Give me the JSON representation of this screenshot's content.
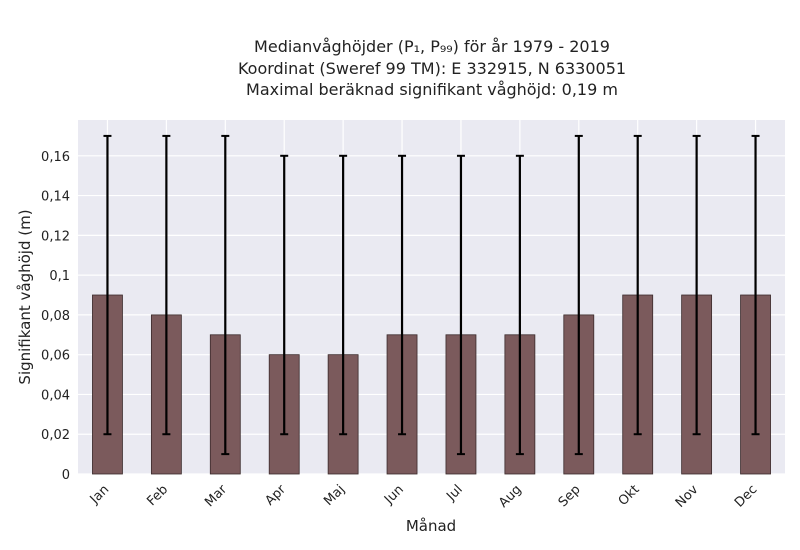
{
  "chart_data": {
    "type": "bar",
    "title_lines": [
      "Medianvåghöjder (P₁, P₉₉) för år 1979 - 2019",
      "Koordinat (Sweref 99 TM): E 332915, N 6330051",
      "Maximal beräknad signifikant våghöjd: 0,19 m"
    ],
    "xlabel": "Månad",
    "ylabel": "Signifikant våghöjd (m)",
    "categories": [
      "Jan",
      "Feb",
      "Mar",
      "Apr",
      "Maj",
      "Jun",
      "Jul",
      "Aug",
      "Sep",
      "Okt",
      "Nov",
      "Dec"
    ],
    "values": [
      0.09,
      0.08,
      0.07,
      0.06,
      0.06,
      0.07,
      0.07,
      0.07,
      0.08,
      0.09,
      0.09,
      0.09
    ],
    "p1": [
      0.02,
      0.02,
      0.01,
      0.02,
      0.02,
      0.02,
      0.01,
      0.01,
      0.01,
      0.02,
      0.02,
      0.02
    ],
    "p99": [
      0.17,
      0.17,
      0.17,
      0.16,
      0.16,
      0.16,
      0.16,
      0.16,
      0.17,
      0.17,
      0.17,
      0.17
    ],
    "ylim": [
      0,
      0.178
    ],
    "yticks": [
      0,
      0.02,
      0.04,
      0.06,
      0.08,
      0.1,
      0.12,
      0.14,
      0.16
    ],
    "ytick_labels": [
      "0",
      "0,02",
      "0,04",
      "0,06",
      "0,08",
      "0,1",
      "0,12",
      "0,14",
      "0,16"
    ],
    "grid": true,
    "colors": {
      "bar": "#7b5a5c",
      "bar_edge": "#3a2a2b",
      "errorbar": "#000000",
      "plot_bg": "#eaeaf2",
      "grid": "#ffffff"
    }
  }
}
